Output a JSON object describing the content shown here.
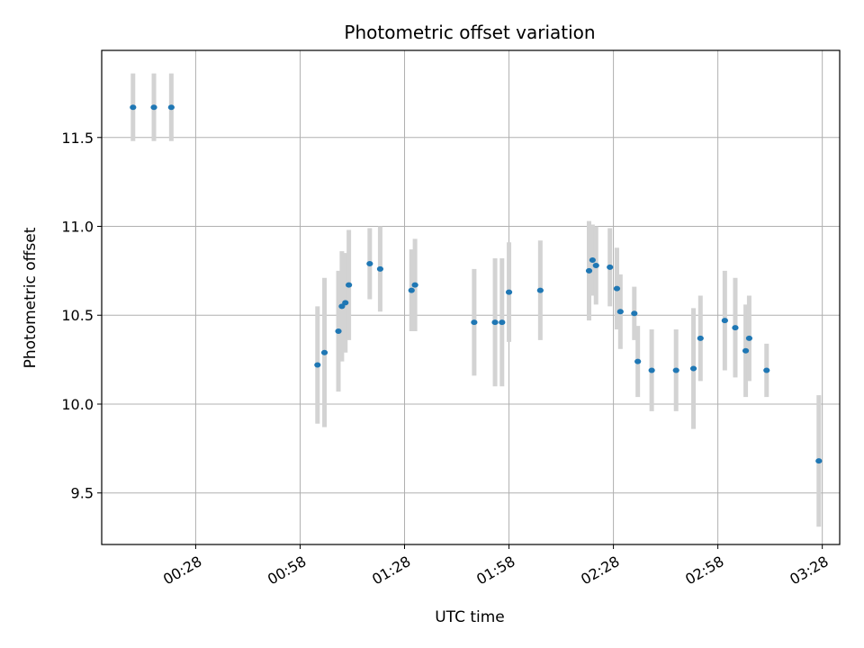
{
  "chart_data": {
    "type": "scatter",
    "title": "Photometric offset variation",
    "xlabel": "UTC time",
    "ylabel": "Photometric offset",
    "grid": true,
    "xlim": [
      "00:01",
      "03:33"
    ],
    "ylim": [
      9.21,
      11.99
    ],
    "x_ticks": [
      "00:28",
      "00:58",
      "01:28",
      "01:58",
      "02:28",
      "02:58",
      "03:28"
    ],
    "y_ticks": [
      9.5,
      10.0,
      10.5,
      11.0,
      11.5
    ],
    "y_tick_labels": [
      "9.5",
      "10.0",
      "10.5",
      "11.0",
      "11.5"
    ],
    "colors": {
      "marker": "#1f77b4",
      "errorbar": "#d3d3d3",
      "grid": "#b0b0b0"
    },
    "points": [
      {
        "x": "00:10",
        "y": 11.67,
        "err": 0.19
      },
      {
        "x": "00:16",
        "y": 11.67,
        "err": 0.19
      },
      {
        "x": "00:21",
        "y": 11.67,
        "err": 0.19
      },
      {
        "x": "01:03",
        "y": 10.22,
        "err": 0.33
      },
      {
        "x": "01:05",
        "y": 10.29,
        "err": 0.42
      },
      {
        "x": "01:09",
        "y": 10.41,
        "err": 0.34
      },
      {
        "x": "01:10",
        "y": 10.55,
        "err": 0.31
      },
      {
        "x": "01:11",
        "y": 10.57,
        "err": 0.28
      },
      {
        "x": "01:12",
        "y": 10.67,
        "err": 0.31
      },
      {
        "x": "01:18",
        "y": 10.79,
        "err": 0.2
      },
      {
        "x": "01:21",
        "y": 10.76,
        "err": 0.24
      },
      {
        "x": "01:30",
        "y": 10.64,
        "err": 0.23
      },
      {
        "x": "01:31",
        "y": 10.67,
        "err": 0.26
      },
      {
        "x": "01:48",
        "y": 10.46,
        "err": 0.3
      },
      {
        "x": "01:54",
        "y": 10.46,
        "err": 0.36
      },
      {
        "x": "01:56",
        "y": 10.46,
        "err": 0.36
      },
      {
        "x": "01:58",
        "y": 10.63,
        "err": 0.28
      },
      {
        "x": "02:07",
        "y": 10.64,
        "err": 0.28
      },
      {
        "x": "02:21",
        "y": 10.75,
        "err": 0.28
      },
      {
        "x": "02:22",
        "y": 10.81,
        "err": 0.2
      },
      {
        "x": "02:23",
        "y": 10.78,
        "err": 0.22
      },
      {
        "x": "02:27",
        "y": 10.77,
        "err": 0.22
      },
      {
        "x": "02:29",
        "y": 10.65,
        "err": 0.23
      },
      {
        "x": "02:30",
        "y": 10.52,
        "err": 0.21
      },
      {
        "x": "02:34",
        "y": 10.51,
        "err": 0.15
      },
      {
        "x": "02:35",
        "y": 10.24,
        "err": 0.2
      },
      {
        "x": "02:39",
        "y": 10.19,
        "err": 0.23
      },
      {
        "x": "02:46",
        "y": 10.19,
        "err": 0.23
      },
      {
        "x": "02:51",
        "y": 10.2,
        "err": 0.34
      },
      {
        "x": "02:53",
        "y": 10.37,
        "err": 0.24
      },
      {
        "x": "03:00",
        "y": 10.47,
        "err": 0.28
      },
      {
        "x": "03:03",
        "y": 10.43,
        "err": 0.28
      },
      {
        "x": "03:06",
        "y": 10.3,
        "err": 0.26
      },
      {
        "x": "03:07",
        "y": 10.37,
        "err": 0.24
      },
      {
        "x": "03:12",
        "y": 10.19,
        "err": 0.15
      },
      {
        "x": "03:27",
        "y": 9.68,
        "err": 0.37
      }
    ]
  }
}
